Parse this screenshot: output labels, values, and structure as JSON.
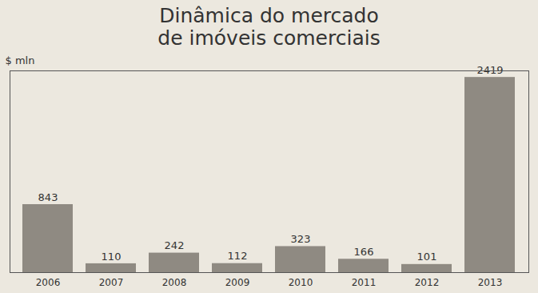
{
  "chart_data": {
    "type": "bar",
    "title": "Dinâmica do mercado\nde imóveis comerciais",
    "y_label": "$ mln",
    "categories": [
      "2006",
      "2007",
      "2008",
      "2009",
      "2010",
      "2011",
      "2012",
      "2013"
    ],
    "values": [
      843,
      110,
      242,
      112,
      323,
      166,
      101,
      2419
    ],
    "color": "#8f8a82",
    "ylim": [
      0,
      2500
    ],
    "data_labels": true,
    "tick_labels": "x",
    "grid": false
  }
}
